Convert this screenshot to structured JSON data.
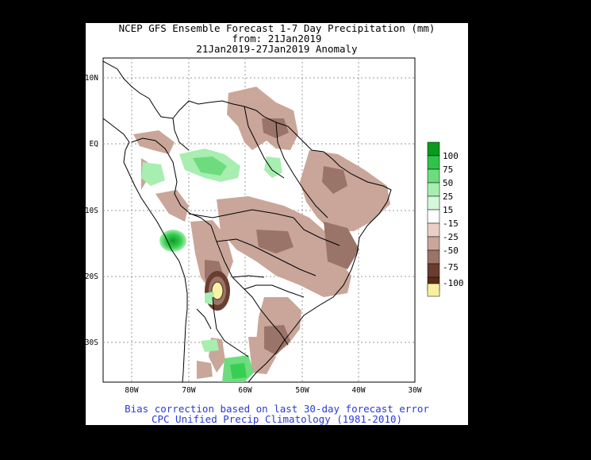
{
  "title": {
    "line1": "NCEP GFS Ensemble Forecast 1-7 Day Precipitation (mm)",
    "line2": "from: 21Jan2019",
    "line3": "21Jan2019-27Jan2019 Anomaly"
  },
  "footer": {
    "line1": "Bias correction based on last 30-day forecast error",
    "line2": "CPC Unified Precip Climatology (1981-2010)"
  },
  "axes": {
    "lat_labels": [
      "10N",
      "EQ",
      "10S",
      "20S",
      "30S"
    ],
    "lon_labels": [
      "80W",
      "70W",
      "60W",
      "50W",
      "40W",
      "30W"
    ]
  },
  "legend": {
    "labels": [
      "100",
      "75",
      "50",
      "25",
      "15",
      "-15",
      "-25",
      "-50",
      "-75",
      "-100"
    ],
    "colors": [
      "#0a9a1e",
      "#2fc34a",
      "#6ddc7e",
      "#a7eeb0",
      "#d5f7da",
      "#ffffff",
      "#e9cfc6",
      "#caa59a",
      "#9a7468",
      "#6a3d30",
      "#5a2a1a",
      "#f7f0a0"
    ]
  },
  "map": {
    "region": "South America",
    "dry_color": "#b8917f",
    "wet_color": "#37cf52",
    "extreme_dry_color": "#f8f2a6",
    "extreme_dry_border": "#4a2a18"
  }
}
